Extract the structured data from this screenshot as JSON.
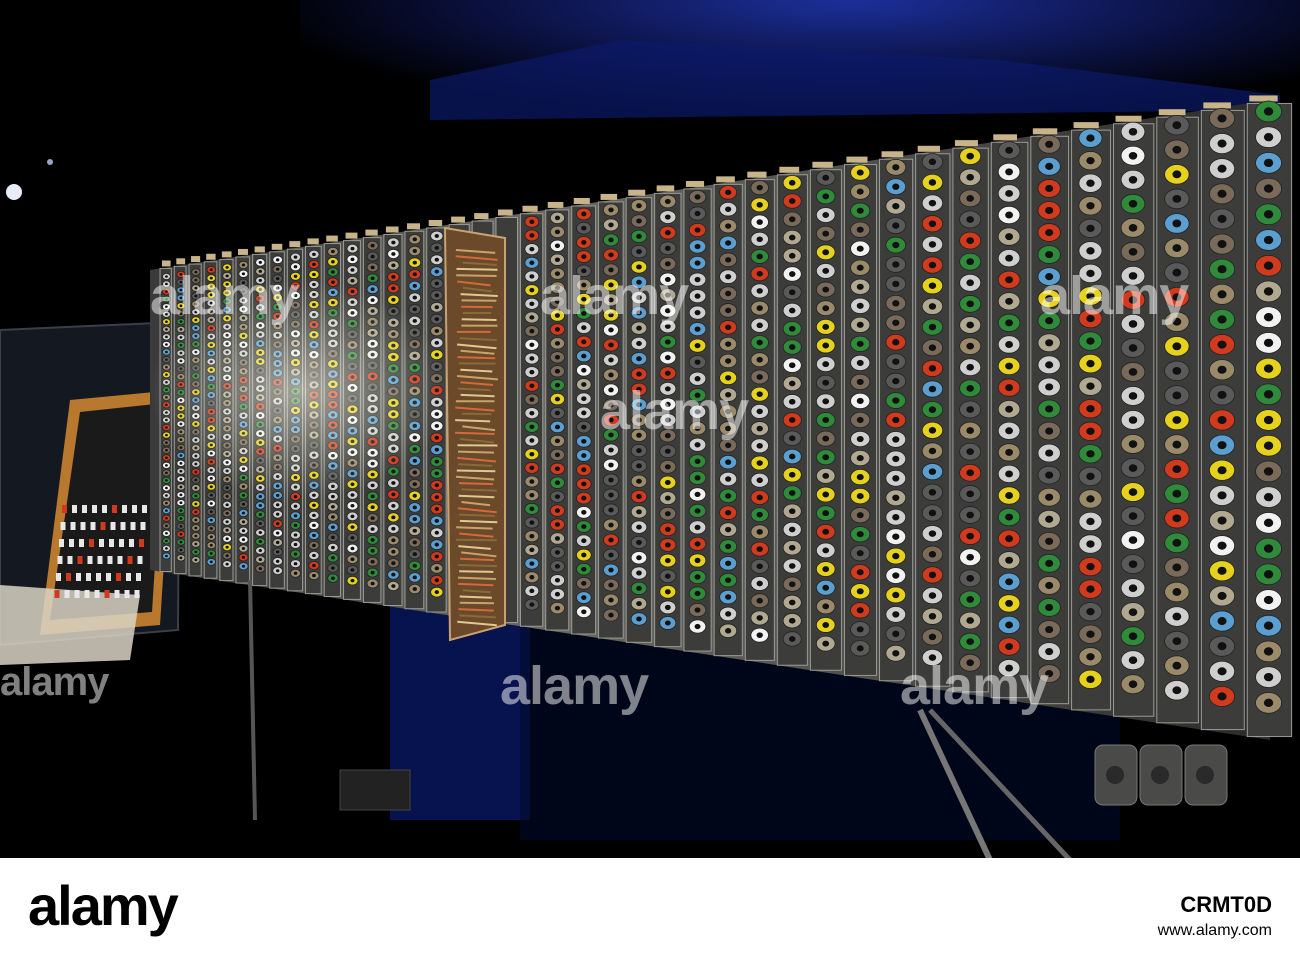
{
  "watermark": {
    "text": "alamy",
    "color": "rgba(255,255,255,0.5)"
  },
  "footer": {
    "brand": "alamy",
    "image_id": "CRMT0D",
    "url": "www.alamy.com"
  },
  "scene": {
    "subject": "pilot-ace-computer-panel",
    "palette": {
      "background": "#000000",
      "ceiling_glow": "#1a2a8a",
      "panel_metal": "#8a8a8a",
      "valve_glass": "#cfcfcf",
      "plug_yellow": "#e6d21c",
      "plug_red": "#d23a1e",
      "plug_green": "#2f8a3a",
      "plug_blue": "#5a9fd0",
      "plug_white": "#f2f2f2",
      "wood_frame": "#b87a3a"
    }
  }
}
